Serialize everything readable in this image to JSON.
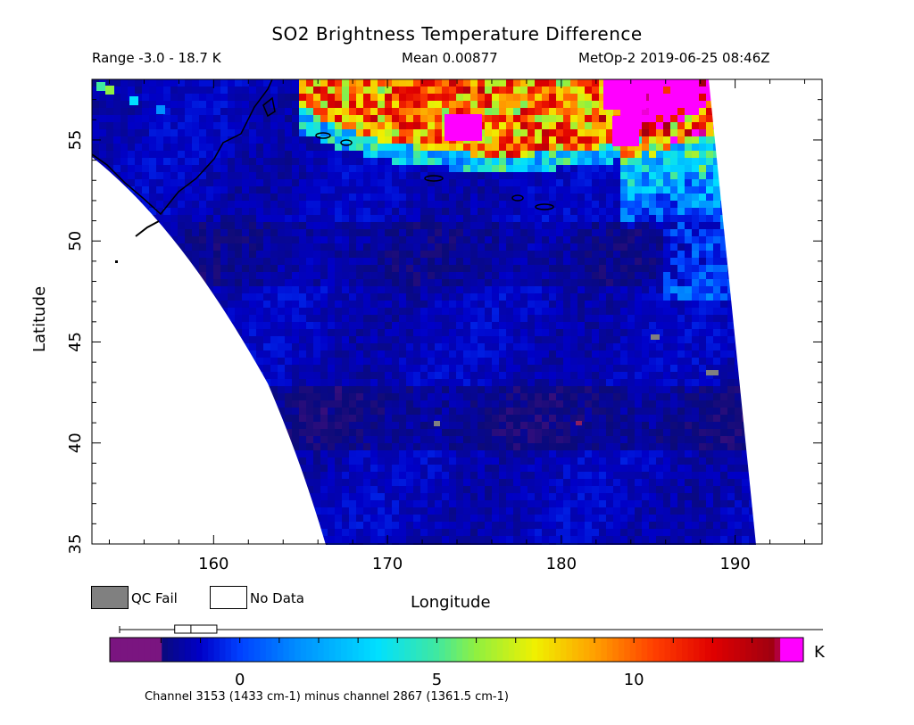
{
  "header": {
    "title": "SO2 Brightness Temperature Difference",
    "range": "Range -3.0 - 18.7 K",
    "mean": "Mean 0.00877",
    "satellite_time": "MetOp-2 2019-06-25 08:46Z"
  },
  "chart_data": {
    "type": "heatmap",
    "title": "SO2 Brightness Temperature Difference",
    "xlabel": "Longitude",
    "ylabel": "Latitude",
    "xlim": [
      153,
      195
    ],
    "ylim": [
      35,
      58
    ],
    "xticks": [
      "160",
      "170",
      "180",
      "190"
    ],
    "yticks": [
      "35",
      "40",
      "45",
      "50",
      "55"
    ],
    "range_min": -3.0,
    "range_max": 18.7,
    "mean": 0.00877,
    "units": "K",
    "colorbar": {
      "min": -3.3,
      "max": 14.3,
      "ticks": [
        "0",
        "5",
        "10"
      ],
      "unit": "K",
      "colors": [
        "#7a1580",
        "#0a0a7a",
        "#0000c8",
        "#0040ff",
        "#0090ff",
        "#00e0ff",
        "#40e8a0",
        "#90f040",
        "#f0f000",
        "#ffa000",
        "#ff4000",
        "#e00000",
        "#a00010",
        "#ff00ff"
      ],
      "stops": [
        -3.3,
        -2.0,
        -1.0,
        0.0,
        1.5,
        3.5,
        5.0,
        6.0,
        7.5,
        9.0,
        10.5,
        12.0,
        13.5,
        14.3
      ],
      "histogram": {
        "axis": [
          -3.0,
          18.7
        ],
        "box": [
          -1.3,
          0.0
        ],
        "median": -0.8
      }
    },
    "legend": [
      {
        "label": "QC Fail",
        "color": "#808080"
      },
      {
        "label": "No Data",
        "color": "#ffffff"
      }
    ],
    "footnote": "Channel 3153 (1433 cm-1) minus channel 2867 (1361.5 cm-1)"
  }
}
